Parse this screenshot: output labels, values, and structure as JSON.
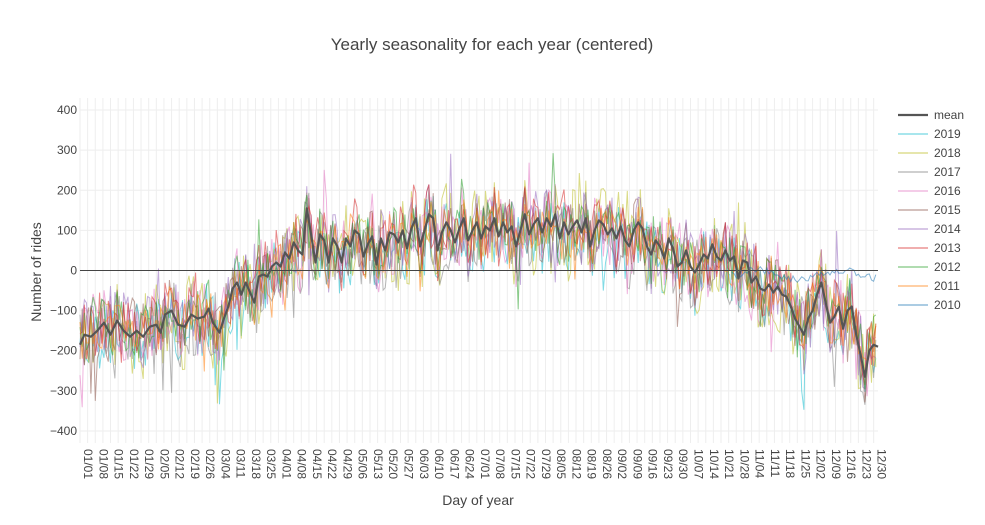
{
  "chart_data": {
    "type": "line",
    "title": "Yearly seasonality for each year (centered)",
    "xlabel": "Day of year",
    "ylabel": "Number of rides",
    "ylim": [
      -430,
      430
    ],
    "yticks": [
      400,
      300,
      200,
      100,
      0,
      -100,
      -200,
      -300,
      -400
    ],
    "ytick_labels": [
      "400",
      "300",
      "200",
      "100",
      "0",
      "−100",
      "−200",
      "−300",
      "−400"
    ],
    "xlim": [
      1,
      367
    ],
    "xtick_labels": [
      "01/01",
      "01/08",
      "01/15",
      "01/22",
      "01/29",
      "02/05",
      "02/12",
      "02/19",
      "02/26",
      "03/04",
      "03/11",
      "03/18",
      "03/25",
      "04/01",
      "04/08",
      "04/15",
      "04/22",
      "04/29",
      "05/06",
      "05/13",
      "05/20",
      "05/27",
      "06/03",
      "06/10",
      "06/17",
      "06/24",
      "07/01",
      "07/08",
      "07/15",
      "07/22",
      "07/29",
      "08/05",
      "08/12",
      "08/19",
      "08/26",
      "09/02",
      "09/09",
      "09/16",
      "09/23",
      "09/30",
      "10/07",
      "10/14",
      "10/21",
      "10/28",
      "11/04",
      "11/11",
      "11/18",
      "11/25",
      "12/02",
      "12/09",
      "12/16",
      "12/23",
      "12/30"
    ],
    "zero_line": true,
    "grid": true,
    "legend_position": "top-right",
    "mean_anchors": [
      [
        1,
        -185
      ],
      [
        3,
        -160
      ],
      [
        6,
        -165
      ],
      [
        9,
        -150
      ],
      [
        12,
        -130
      ],
      [
        15,
        -160
      ],
      [
        18,
        -125
      ],
      [
        21,
        -150
      ],
      [
        24,
        -165
      ],
      [
        27,
        -150
      ],
      [
        30,
        -165
      ],
      [
        33,
        -140
      ],
      [
        36,
        -135
      ],
      [
        38,
        -155
      ],
      [
        40,
        -110
      ],
      [
        43,
        -100
      ],
      [
        46,
        -135
      ],
      [
        49,
        -140
      ],
      [
        52,
        -110
      ],
      [
        55,
        -120
      ],
      [
        58,
        -115
      ],
      [
        60,
        -95
      ],
      [
        62,
        -130
      ],
      [
        65,
        -155
      ],
      [
        67,
        -120
      ],
      [
        69,
        -90
      ],
      [
        71,
        -45
      ],
      [
        73,
        -30
      ],
      [
        75,
        -60
      ],
      [
        77,
        -30
      ],
      [
        79,
        -55
      ],
      [
        81,
        -80
      ],
      [
        83,
        -15
      ],
      [
        85,
        -10
      ],
      [
        87,
        -15
      ],
      [
        89,
        10
      ],
      [
        91,
        20
      ],
      [
        93,
        10
      ],
      [
        95,
        45
      ],
      [
        97,
        30
      ],
      [
        99,
        70
      ],
      [
        101,
        50
      ],
      [
        103,
        40
      ],
      [
        105,
        155
      ],
      [
        107,
        90
      ],
      [
        109,
        20
      ],
      [
        111,
        90
      ],
      [
        113,
        75
      ],
      [
        115,
        20
      ],
      [
        117,
        80
      ],
      [
        119,
        60
      ],
      [
        121,
        20
      ],
      [
        123,
        80
      ],
      [
        125,
        60
      ],
      [
        127,
        100
      ],
      [
        129,
        90
      ],
      [
        131,
        35
      ],
      [
        133,
        65
      ],
      [
        135,
        85
      ],
      [
        137,
        15
      ],
      [
        139,
        80
      ],
      [
        141,
        50
      ],
      [
        143,
        95
      ],
      [
        145,
        90
      ],
      [
        147,
        70
      ],
      [
        149,
        100
      ],
      [
        151,
        55
      ],
      [
        153,
        105
      ],
      [
        155,
        130
      ],
      [
        157,
        60
      ],
      [
        159,
        100
      ],
      [
        161,
        140
      ],
      [
        163,
        130
      ],
      [
        165,
        50
      ],
      [
        167,
        95
      ],
      [
        169,
        120
      ],
      [
        171,
        100
      ],
      [
        173,
        70
      ],
      [
        175,
        105
      ],
      [
        177,
        130
      ],
      [
        179,
        75
      ],
      [
        181,
        100
      ],
      [
        183,
        120
      ],
      [
        185,
        80
      ],
      [
        187,
        110
      ],
      [
        189,
        100
      ],
      [
        191,
        130
      ],
      [
        193,
        85
      ],
      [
        195,
        120
      ],
      [
        197,
        95
      ],
      [
        199,
        110
      ],
      [
        201,
        60
      ],
      [
        203,
        100
      ],
      [
        205,
        140
      ],
      [
        207,
        90
      ],
      [
        209,
        115
      ],
      [
        211,
        130
      ],
      [
        213,
        95
      ],
      [
        215,
        130
      ],
      [
        217,
        110
      ],
      [
        219,
        140
      ],
      [
        221,
        80
      ],
      [
        223,
        120
      ],
      [
        225,
        90
      ],
      [
        227,
        110
      ],
      [
        229,
        125
      ],
      [
        231,
        95
      ],
      [
        233,
        130
      ],
      [
        235,
        60
      ],
      [
        237,
        100
      ],
      [
        239,
        125
      ],
      [
        241,
        115
      ],
      [
        243,
        90
      ],
      [
        245,
        105
      ],
      [
        247,
        80
      ],
      [
        249,
        110
      ],
      [
        251,
        75
      ],
      [
        253,
        60
      ],
      [
        255,
        100
      ],
      [
        257,
        120
      ],
      [
        259,
        105
      ],
      [
        261,
        60
      ],
      [
        263,
        40
      ],
      [
        265,
        75
      ],
      [
        267,
        60
      ],
      [
        269,
        30
      ],
      [
        271,
        80
      ],
      [
        273,
        55
      ],
      [
        275,
        10
      ],
      [
        277,
        20
      ],
      [
        279,
        50
      ],
      [
        281,
        10
      ],
      [
        283,
        -5
      ],
      [
        285,
        15
      ],
      [
        287,
        40
      ],
      [
        289,
        30
      ],
      [
        291,
        65
      ],
      [
        293,
        35
      ],
      [
        295,
        25
      ],
      [
        297,
        50
      ],
      [
        299,
        25
      ],
      [
        301,
        35
      ],
      [
        303,
        -20
      ],
      [
        305,
        25
      ],
      [
        307,
        20
      ],
      [
        309,
        -30
      ],
      [
        311,
        -15
      ],
      [
        313,
        -45
      ],
      [
        315,
        -50
      ],
      [
        317,
        -35
      ],
      [
        319,
        -55
      ],
      [
        321,
        -40
      ],
      [
        323,
        -60
      ],
      [
        325,
        -65
      ],
      [
        327,
        -90
      ],
      [
        329,
        -120
      ],
      [
        331,
        -140
      ],
      [
        333,
        -160
      ],
      [
        335,
        -120
      ],
      [
        337,
        -100
      ],
      [
        339,
        -60
      ],
      [
        341,
        -30
      ],
      [
        343,
        -80
      ],
      [
        345,
        -130
      ],
      [
        347,
        -115
      ],
      [
        349,
        -90
      ],
      [
        351,
        -145
      ],
      [
        353,
        -100
      ],
      [
        355,
        -90
      ],
      [
        357,
        -160
      ],
      [
        359,
        -210
      ],
      [
        361,
        -265
      ],
      [
        363,
        -200
      ],
      [
        365,
        -185
      ],
      [
        367,
        -190
      ]
    ],
    "series": [
      {
        "name": "mean",
        "color": "#555555",
        "bold": true
      },
      {
        "name": "2019",
        "color": "#17becf",
        "base": -20,
        "amp": 55,
        "seed": 19,
        "start": 1,
        "end": 366
      },
      {
        "name": "2018",
        "color": "#bcbd22",
        "base": -10,
        "amp": 70,
        "seed": 18,
        "start": 1,
        "end": 366
      },
      {
        "name": "2017",
        "color": "#7f7f7f",
        "base": -15,
        "amp": 60,
        "seed": 17,
        "start": 1,
        "end": 366
      },
      {
        "name": "2016",
        "color": "#e377c2",
        "base": -5,
        "amp": 60,
        "seed": 16,
        "start": 1,
        "end": 366
      },
      {
        "name": "2015",
        "color": "#8c564b",
        "base": -5,
        "amp": 50,
        "seed": 15,
        "start": 1,
        "end": 366
      },
      {
        "name": "2014",
        "color": "#9467bd",
        "base": 0,
        "amp": 55,
        "seed": 14,
        "start": 1,
        "end": 366
      },
      {
        "name": "2013",
        "color": "#d62728",
        "base": 5,
        "amp": 50,
        "seed": 13,
        "start": 1,
        "end": 366
      },
      {
        "name": "2012",
        "color": "#2ca02c",
        "base": 0,
        "amp": 45,
        "seed": 12,
        "start": 1,
        "end": 366
      },
      {
        "name": "2011",
        "color": "#ff7f0e",
        "base": -5,
        "amp": 40,
        "seed": 11,
        "start": 1,
        "end": 366
      },
      {
        "name": "2010",
        "color": "#1f77b4",
        "base": 10,
        "amp": 15,
        "seed": 10,
        "start": 300,
        "end": 366
      }
    ]
  }
}
